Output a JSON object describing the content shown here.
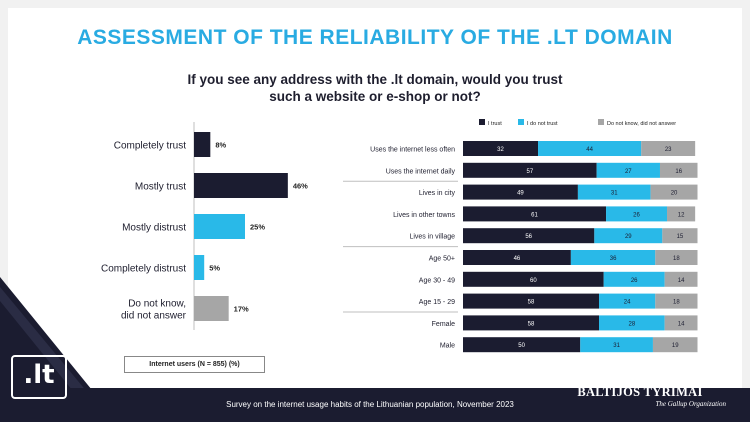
{
  "title": "ASSESSMENT OF THE RELIABILITY OF THE .LT DOMAIN",
  "subtitle_line1": "If you see any address with the .lt domain, would you trust",
  "subtitle_line2": "such a website or e-shop or not?",
  "footer": "Survey on the internet usage habits of the Lithuanian population, November 2023",
  "logo_text": ".lt",
  "brand_name": "BALTIJOS TYRIMAI",
  "brand_tagline": "The Gallup Organization",
  "note": "Internet users (N = 855) (%)",
  "colors": {
    "title": "#29abe2",
    "navy": "#1b1c30",
    "cyan": "#29b9e8",
    "gray": "#a6a6a6"
  },
  "chart_data": [
    {
      "type": "bar",
      "orientation": "horizontal",
      "categories": [
        "Completely trust",
        "Mostly trust",
        "Mostly distrust",
        "Completely distrust",
        "Do not know, did not answer"
      ],
      "label_lines": [
        [
          "Completely trust"
        ],
        [
          "Mostly trust"
        ],
        [
          "Mostly distrust"
        ],
        [
          "Completely distrust"
        ],
        [
          "Do not know,",
          "did not answer"
        ]
      ],
      "values": [
        8,
        46,
        25,
        5,
        17
      ],
      "value_labels": [
        "8%",
        "46%",
        "25%",
        "5%",
        "17%"
      ],
      "colors": [
        "#1b1c30",
        "#1b1c30",
        "#29b9e8",
        "#29b9e8",
        "#a6a6a6"
      ],
      "xlim": [
        0,
        100
      ]
    },
    {
      "type": "bar",
      "orientation": "horizontal",
      "stacked": true,
      "categories": [
        "Uses the internet less often",
        "Uses the internet daily",
        "Lives in city",
        "Lives in other towns",
        "Lives in village",
        "Age 50+",
        "Age 30 - 49",
        "Age 15 - 29",
        "Female",
        "Male"
      ],
      "series": [
        {
          "name": "I trust",
          "values": [
            32,
            57,
            49,
            61,
            56,
            46,
            60,
            58,
            58,
            50
          ],
          "color": "#1b1c30"
        },
        {
          "name": "I do not trust",
          "values": [
            44,
            27,
            31,
            26,
            29,
            36,
            26,
            24,
            28,
            31
          ],
          "color": "#29b9e8"
        },
        {
          "name": "Do not know, did not answer",
          "values": [
            23,
            16,
            20,
            12,
            15,
            18,
            14,
            18,
            14,
            19
          ],
          "color": "#a6a6a6"
        }
      ],
      "groups": [
        [
          0,
          1
        ],
        [
          2,
          3,
          4
        ],
        [
          5,
          6,
          7
        ],
        [
          8,
          9
        ]
      ],
      "legend_position": "top"
    }
  ]
}
